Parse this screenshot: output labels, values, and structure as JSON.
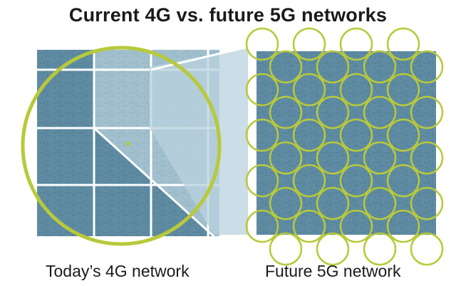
{
  "title": "Current 4G vs. future 5G networks",
  "captions": {
    "left": "Today’s 4G network",
    "right": "Future 5G network"
  },
  "colors": {
    "map_fill": "#5f8ca3",
    "map_light": "#b9d2dd",
    "ring": "#b8c93a",
    "grid_line": "#ffffff",
    "text": "#1a1a1a"
  }
}
